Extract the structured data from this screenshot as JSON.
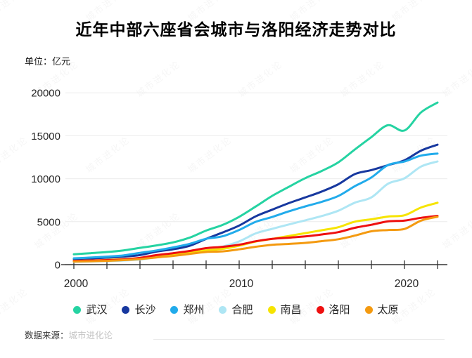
{
  "title": "近年中部六座省会城市与洛阳经济走势对比",
  "unit_label": "单位：亿元",
  "source": {
    "prefix": "数据来源：",
    "name": "城市进化论"
  },
  "watermark_text": "城市进化论",
  "colors": {
    "axis": "#333333",
    "grid": "#ececec",
    "tick_label": "#262626",
    "title": "#000000",
    "source_prefix": "#333333",
    "source_name": "#c3c3c3"
  },
  "chart_data": {
    "type": "line",
    "x": [
      2000,
      2001,
      2002,
      2003,
      2004,
      2005,
      2006,
      2007,
      2008,
      2009,
      2010,
      2011,
      2012,
      2013,
      2014,
      2015,
      2016,
      2017,
      2018,
      2019,
      2020,
      2021,
      2022
    ],
    "xtick_labels_shown": [
      "2000",
      "2010",
      "2020"
    ],
    "xtick_marks_every_years": 2,
    "yticks": [
      0,
      5000,
      10000,
      15000,
      20000
    ],
    "ytick_labels": [
      "0",
      "5000",
      "10000",
      "15000",
      "20000"
    ],
    "ylim": [
      0,
      20000
    ],
    "grid": "horizontal",
    "legend_position": "bottom",
    "series": [
      {
        "key": "wuhan",
        "name": "武汉",
        "color": "#25d3a2",
        "values": [
          1207,
          1335,
          1467,
          1662,
          1956,
          2238,
          2590,
          3141,
          3960,
          4621,
          5566,
          6762,
          8004,
          9051,
          10069,
          10906,
          11913,
          13410,
          14847,
          16223,
          15616,
          17717,
          18866
        ]
      },
      {
        "key": "changsha",
        "name": "长沙",
        "color": "#17389f",
        "values": [
          656,
          728,
          813,
          928,
          1109,
          1520,
          1791,
          2190,
          3001,
          3745,
          4547,
          5619,
          6400,
          7153,
          7825,
          8510,
          9357,
          10536,
          11003,
          11574,
          12143,
          13271,
          13966
        ]
      },
      {
        "key": "zhengzhou",
        "name": "郑州",
        "color": "#21abeb",
        "values": [
          738,
          828,
          928,
          1074,
          1375,
          1650,
          2002,
          2421,
          3004,
          3300,
          4040,
          4980,
          5550,
          6202,
          6777,
          7315,
          7994,
          9130,
          10143,
          11590,
          12003,
          12691,
          12935
        ]
      },
      {
        "key": "hefei",
        "name": "合肥",
        "color": "#aee6f4",
        "values": [
          325,
          364,
          413,
          478,
          590,
          854,
          1074,
          1334,
          1665,
          2102,
          2702,
          3637,
          4164,
          4673,
          5158,
          5660,
          6274,
          7213,
          7823,
          9409,
          10046,
          11413,
          12013
        ]
      },
      {
        "key": "nanchang",
        "name": "南昌",
        "color": "#f6e400",
        "values": [
          428,
          485,
          552,
          641,
          770,
          1008,
          1185,
          1390,
          1660,
          1838,
          2207,
          2689,
          3001,
          3336,
          3668,
          4000,
          4355,
          5003,
          5275,
          5596,
          5746,
          6651,
          7204
        ]
      },
      {
        "key": "luoyang",
        "name": "洛阳",
        "color": "#ee1010",
        "values": [
          443,
          479,
          528,
          606,
          786,
          1112,
          1332,
          1596,
          1920,
          2075,
          2321,
          2723,
          3001,
          3141,
          3285,
          3509,
          3783,
          4290,
          4640,
          5035,
          5128,
          5447,
          5675
        ]
      },
      {
        "key": "taiyuan",
        "name": "太原",
        "color": "#f49a10",
        "values": [
          357,
          396,
          445,
          527,
          646,
          843,
          1013,
          1254,
          1468,
          1545,
          1778,
          2080,
          2311,
          2412,
          2531,
          2735,
          2955,
          3382,
          3884,
          4028,
          4153,
          5121,
          5571
        ]
      }
    ]
  }
}
